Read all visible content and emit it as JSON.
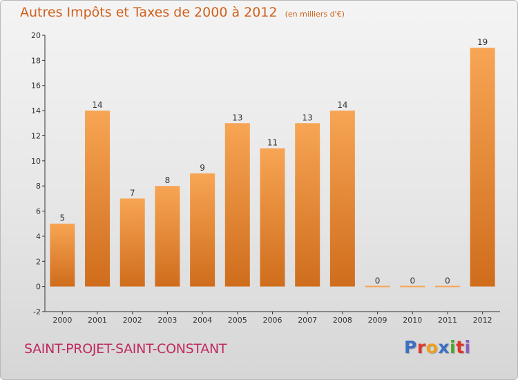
{
  "header": {
    "title": "Autres Impôts et Taxes de 2000 à 2012",
    "unit": "(en milliers d'€)"
  },
  "footer": {
    "commune": "SAINT-PROJET-SAINT-CONSTANT",
    "logo": "Proxiti",
    "logo_colors": [
      "#3b6fc4",
      "#e0342a",
      "#f0a020",
      "#3b6fc4",
      "#4aa82e",
      "#e0342a",
      "#8a5cc0"
    ]
  },
  "colors": {
    "bar_top": "#f7a554",
    "bar_bottom": "#cf6d1c",
    "axis": "#333333",
    "text": "#333333"
  },
  "chart_data": {
    "type": "bar",
    "title": "Autres Impôts et Taxes de 2000 à 2012",
    "xlabel": "",
    "ylabel": "",
    "categories": [
      "2000",
      "2001",
      "2002",
      "2003",
      "2004",
      "2005",
      "2006",
      "2007",
      "2008",
      "2009",
      "2010",
      "2011",
      "2012"
    ],
    "values": [
      5,
      14,
      7,
      8,
      9,
      13,
      11,
      13,
      14,
      0,
      0,
      0,
      19
    ],
    "ylim": [
      -2,
      20
    ],
    "yticks": [
      -2,
      0,
      2,
      4,
      6,
      8,
      10,
      12,
      14,
      16,
      18,
      20
    ],
    "grid": false,
    "data_labels": true
  }
}
